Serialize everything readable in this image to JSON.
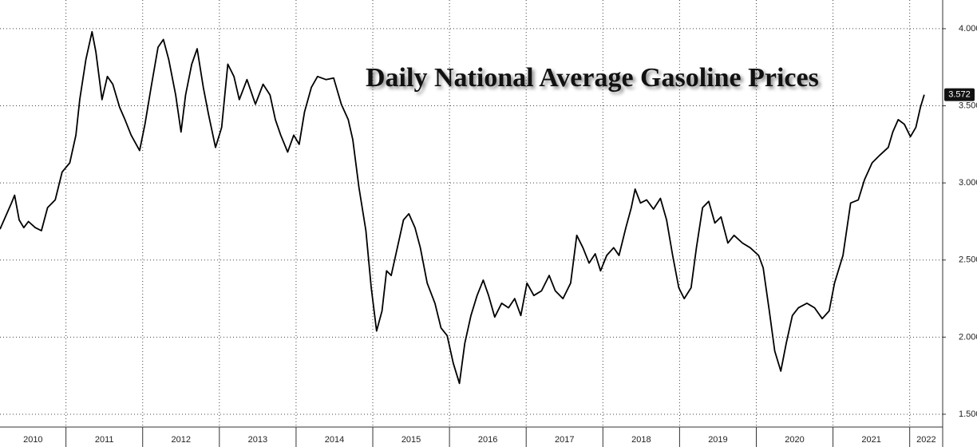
{
  "chart_data": {
    "type": "line",
    "title": "Daily National Average Gasoline Prices",
    "x": [
      2010.14,
      2010.29,
      2010.33,
      2010.39,
      2010.45,
      2010.51,
      2010.6,
      2010.68,
      2010.76,
      2010.86,
      2010.95,
      2011.05,
      2011.13,
      2011.18,
      2011.26,
      2011.34,
      2011.39,
      2011.47,
      2011.54,
      2011.61,
      2011.7,
      2011.77,
      2011.85,
      2011.96,
      2012.03,
      2012.11,
      2012.2,
      2012.27,
      2012.34,
      2012.43,
      2012.5,
      2012.56,
      2012.64,
      2012.71,
      2012.79,
      2012.86,
      2012.95,
      2013.03,
      2013.11,
      2013.19,
      2013.26,
      2013.36,
      2013.47,
      2013.57,
      2013.66,
      2013.73,
      2013.8,
      2013.89,
      2013.97,
      2014.04,
      2014.11,
      2014.2,
      2014.28,
      2014.39,
      2014.49,
      2014.59,
      2014.68,
      2014.74,
      2014.82,
      2014.91,
      2014.98,
      2015.05,
      2015.12,
      2015.18,
      2015.24,
      2015.32,
      2015.4,
      2015.47,
      2015.55,
      2015.62,
      2015.71,
      2015.81,
      2015.89,
      2015.97,
      2016.05,
      2016.13,
      2016.2,
      2016.28,
      2016.36,
      2016.44,
      2016.51,
      2016.59,
      2016.68,
      2016.77,
      2016.85,
      2016.93,
      2017.01,
      2017.1,
      2017.2,
      2017.3,
      2017.38,
      2017.48,
      2017.58,
      2017.66,
      2017.74,
      2017.82,
      2017.9,
      2017.97,
      2018.05,
      2018.14,
      2018.21,
      2018.3,
      2018.37,
      2018.42,
      2018.49,
      2018.57,
      2018.66,
      2018.75,
      2018.83,
      2018.91,
      2018.99,
      2019.06,
      2019.15,
      2019.22,
      2019.3,
      2019.38,
      2019.46,
      2019.54,
      2019.63,
      2019.71,
      2019.82,
      2019.92,
      2020.03,
      2020.09,
      2020.17,
      2020.24,
      2020.32,
      2020.39,
      2020.47,
      2020.55,
      2020.66,
      2020.76,
      2020.86,
      2020.95,
      2021.02,
      2021.13,
      2021.23,
      2021.33,
      2021.41,
      2021.51,
      2021.61,
      2021.72,
      2021.78,
      2021.85,
      2021.93,
      2022.01,
      2022.08,
      2022.14,
      2022.19
    ],
    "series": [
      {
        "color": "#000000",
        "values": [
          2.7,
          2.87,
          2.92,
          2.76,
          2.71,
          2.75,
          2.71,
          2.69,
          2.84,
          2.89,
          3.07,
          3.13,
          3.31,
          3.54,
          3.8,
          3.98,
          3.85,
          3.54,
          3.69,
          3.64,
          3.49,
          3.41,
          3.31,
          3.21,
          3.38,
          3.62,
          3.88,
          3.93,
          3.8,
          3.57,
          3.33,
          3.57,
          3.77,
          3.87,
          3.62,
          3.44,
          3.23,
          3.36,
          3.77,
          3.69,
          3.54,
          3.67,
          3.51,
          3.64,
          3.57,
          3.41,
          3.31,
          3.2,
          3.31,
          3.25,
          3.46,
          3.62,
          3.69,
          3.67,
          3.68,
          3.51,
          3.41,
          3.28,
          2.97,
          2.69,
          2.32,
          2.04,
          2.17,
          2.43,
          2.4,
          2.58,
          2.76,
          2.8,
          2.71,
          2.58,
          2.35,
          2.22,
          2.06,
          2.01,
          1.83,
          1.7,
          1.96,
          2.14,
          2.27,
          2.37,
          2.27,
          2.13,
          2.22,
          2.19,
          2.25,
          2.14,
          2.35,
          2.27,
          2.3,
          2.4,
          2.3,
          2.25,
          2.35,
          2.66,
          2.58,
          2.48,
          2.54,
          2.43,
          2.53,
          2.58,
          2.53,
          2.71,
          2.84,
          2.96,
          2.87,
          2.89,
          2.83,
          2.9,
          2.76,
          2.53,
          2.32,
          2.25,
          2.32,
          2.58,
          2.84,
          2.88,
          2.74,
          2.78,
          2.61,
          2.66,
          2.61,
          2.58,
          2.53,
          2.45,
          2.17,
          1.91,
          1.78,
          1.96,
          2.14,
          2.19,
          2.22,
          2.19,
          2.12,
          2.17,
          2.35,
          2.53,
          2.87,
          2.89,
          3.02,
          3.13,
          3.18,
          3.23,
          3.33,
          3.41,
          3.38,
          3.3,
          3.36,
          3.49,
          3.572
        ]
      }
    ],
    "last_price": {
      "value": 3.572,
      "label": "3.572"
    },
    "xlim": [
      2010.14,
      2022.43
    ],
    "xticks": [
      2010,
      2011,
      2012,
      2013,
      2014,
      2015,
      2016,
      2017,
      2018,
      2019,
      2020,
      2021,
      2022
    ],
    "ylim": [
      1.417,
      4.186
    ],
    "yticks": [
      {
        "value": 1.5,
        "label": "1.500"
      },
      {
        "value": 2,
        "label": "2.000"
      },
      {
        "value": 2.5,
        "label": "2.500"
      },
      {
        "value": 3,
        "label": "3.000"
      },
      {
        "value": 3.5,
        "label": "3.500"
      },
      {
        "value": 4,
        "label": "4.000"
      }
    ],
    "grid": true
  }
}
